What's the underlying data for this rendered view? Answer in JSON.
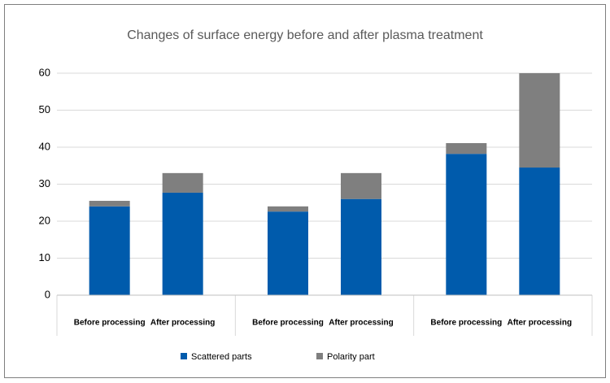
{
  "chart_data": {
    "type": "stacked_bar",
    "title": "Changes of surface energy before and after plasma treatment",
    "categories": [
      "Before processing",
      "After processing",
      "Before processing",
      "After processing",
      "Before processing",
      "After processing"
    ],
    "series": [
      {
        "name": "Scattered parts",
        "color": "#005bac",
        "values": [
          24,
          27.7,
          22.6,
          26,
          38.2,
          34.5
        ]
      },
      {
        "name": "Polarity part",
        "color": "#7f7f7f",
        "values": [
          1.5,
          5.3,
          1.4,
          7,
          2.9,
          25.5
        ]
      }
    ],
    "ylim": [
      0,
      60
    ],
    "yticks": [
      0,
      10,
      20,
      30,
      40,
      50,
      60
    ],
    "grid": true,
    "legend": "bottom"
  }
}
